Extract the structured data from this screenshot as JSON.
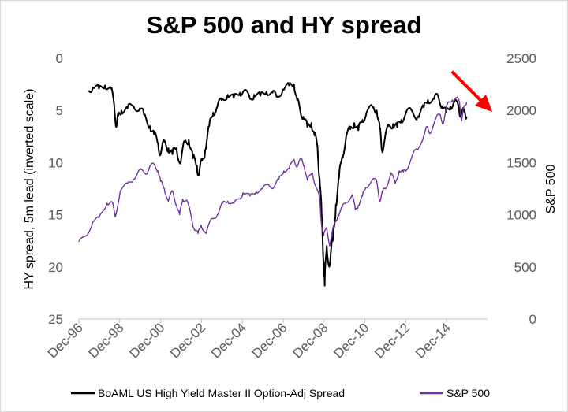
{
  "chart_data": {
    "type": "line",
    "title": "S&P 500 and HY spread",
    "ylabel_left": "HY spread, 5m lead (inverted scale)",
    "ylabel_right": "S&P 500",
    "x_ticks": [
      "Dec-96",
      "Dec-98",
      "Dec-00",
      "Dec-02",
      "Dec-04",
      "Dec-06",
      "Dec-08",
      "Dec-10",
      "Dec-12",
      "Dec-14"
    ],
    "x_range": [
      1996.92,
      2016.92
    ],
    "ylim_left": [
      0,
      25
    ],
    "ylim_left_inverted": true,
    "yticks_left": [
      "0",
      "5",
      "10",
      "15",
      "20",
      "25"
    ],
    "ylim_right": [
      0,
      2500
    ],
    "yticks_right": [
      "0",
      "500",
      "1000",
      "1500",
      "2000",
      "2500"
    ],
    "grid": false,
    "legend_position": "bottom",
    "series": [
      {
        "name": "BoAML US High Yield Master II Option-Adj Spread",
        "axis": "left",
        "color": "#000000",
        "points": [
          [
            1997.4,
            3.1
          ],
          [
            1997.6,
            2.8
          ],
          [
            1997.9,
            2.9
          ],
          [
            1998.2,
            2.6
          ],
          [
            1998.5,
            2.9
          ],
          [
            1998.65,
            4.5
          ],
          [
            1998.75,
            6.6
          ],
          [
            1998.85,
            5.5
          ],
          [
            1999.0,
            5.0
          ],
          [
            1999.3,
            4.8
          ],
          [
            1999.6,
            4.6
          ],
          [
            1999.9,
            4.8
          ],
          [
            2000.1,
            5.4
          ],
          [
            2000.4,
            6.5
          ],
          [
            2000.6,
            7.3
          ],
          [
            2000.8,
            8.2
          ],
          [
            2000.92,
            9.2
          ],
          [
            2001.1,
            8.0
          ],
          [
            2001.3,
            8.6
          ],
          [
            2001.5,
            9.2
          ],
          [
            2001.7,
            8.6
          ],
          [
            2001.9,
            10.1
          ],
          [
            2002.1,
            8.0
          ],
          [
            2002.3,
            7.8
          ],
          [
            2002.5,
            9.6
          ],
          [
            2002.7,
            10.3
          ],
          [
            2002.8,
            11.2
          ],
          [
            2002.95,
            9.8
          ],
          [
            2003.1,
            8.8
          ],
          [
            2003.3,
            6.5
          ],
          [
            2003.5,
            5.2
          ],
          [
            2003.7,
            4.6
          ],
          [
            2003.9,
            4.0
          ],
          [
            2004.2,
            3.5
          ],
          [
            2004.5,
            3.8
          ],
          [
            2004.8,
            3.3
          ],
          [
            2005.0,
            3.1
          ],
          [
            2005.3,
            3.9
          ],
          [
            2005.5,
            3.5
          ],
          [
            2005.8,
            3.6
          ],
          [
            2006.1,
            3.2
          ],
          [
            2006.4,
            3.3
          ],
          [
            2006.6,
            3.7
          ],
          [
            2006.9,
            3.0
          ],
          [
            2007.2,
            2.6
          ],
          [
            2007.45,
            2.5
          ],
          [
            2007.6,
            4.0
          ],
          [
            2007.75,
            5.0
          ],
          [
            2007.9,
            5.6
          ],
          [
            2008.1,
            6.6
          ],
          [
            2008.3,
            6.2
          ],
          [
            2008.45,
            7.4
          ],
          [
            2008.6,
            8.5
          ],
          [
            2008.7,
            11.5
          ],
          [
            2008.8,
            15.0
          ],
          [
            2008.9,
            19.5
          ],
          [
            2008.95,
            21.8
          ],
          [
            2009.05,
            18.0
          ],
          [
            2009.2,
            19.8
          ],
          [
            2009.35,
            17.5
          ],
          [
            2009.5,
            14.0
          ],
          [
            2009.65,
            11.5
          ],
          [
            2009.8,
            9.5
          ],
          [
            2010.0,
            7.5
          ],
          [
            2010.2,
            6.8
          ],
          [
            2010.4,
            6.2
          ],
          [
            2010.6,
            6.9
          ],
          [
            2010.8,
            5.9
          ],
          [
            2011.0,
            5.2
          ],
          [
            2011.3,
            4.7
          ],
          [
            2011.5,
            5.0
          ],
          [
            2011.65,
            6.8
          ],
          [
            2011.75,
            8.8
          ],
          [
            2011.9,
            7.6
          ],
          [
            2012.1,
            6.5
          ],
          [
            2012.3,
            6.3
          ],
          [
            2012.5,
            6.6
          ],
          [
            2012.7,
            5.9
          ],
          [
            2012.92,
            5.3
          ],
          [
            2013.2,
            5.0
          ],
          [
            2013.5,
            5.6
          ],
          [
            2013.8,
            4.7
          ],
          [
            2014.0,
            4.0
          ],
          [
            2014.3,
            3.9
          ],
          [
            2014.5,
            3.6
          ],
          [
            2014.7,
            4.6
          ],
          [
            2014.9,
            5.2
          ],
          [
            2015.1,
            4.6
          ],
          [
            2015.3,
            4.2
          ],
          [
            2015.5,
            4.6
          ],
          [
            2015.6,
            5.4
          ],
          [
            2015.75,
            5.1
          ],
          [
            2015.9,
            5.6
          ]
        ]
      },
      {
        "name": "S&P 500",
        "axis": "right",
        "color": "#7030a0",
        "points": [
          [
            1996.92,
            740
          ],
          [
            1997.3,
            800
          ],
          [
            1997.6,
            930
          ],
          [
            1997.9,
            970
          ],
          [
            1998.3,
            1110
          ],
          [
            1998.55,
            1120
          ],
          [
            1998.7,
            980
          ],
          [
            1998.95,
            1230
          ],
          [
            1999.3,
            1300
          ],
          [
            1999.6,
            1340
          ],
          [
            1999.9,
            1430
          ],
          [
            2000.2,
            1390
          ],
          [
            2000.4,
            1470
          ],
          [
            2000.6,
            1480
          ],
          [
            2000.8,
            1420
          ],
          [
            2000.92,
            1320
          ],
          [
            2001.1,
            1250
          ],
          [
            2001.3,
            1130
          ],
          [
            2001.5,
            1230
          ],
          [
            2001.7,
            1090
          ],
          [
            2001.85,
            1000
          ],
          [
            2002.0,
            1150
          ],
          [
            2002.2,
            1140
          ],
          [
            2002.4,
            1000
          ],
          [
            2002.55,
            870
          ],
          [
            2002.75,
            820
          ],
          [
            2002.9,
            900
          ],
          [
            2003.15,
            820
          ],
          [
            2003.4,
            960
          ],
          [
            2003.7,
            1000
          ],
          [
            2003.95,
            1110
          ],
          [
            2004.2,
            1130
          ],
          [
            2004.5,
            1110
          ],
          [
            2004.8,
            1150
          ],
          [
            2004.95,
            1210
          ],
          [
            2005.3,
            1180
          ],
          [
            2005.6,
            1220
          ],
          [
            2005.9,
            1250
          ],
          [
            2006.2,
            1290
          ],
          [
            2006.45,
            1260
          ],
          [
            2006.7,
            1340
          ],
          [
            2006.95,
            1420
          ],
          [
            2007.2,
            1440
          ],
          [
            2007.45,
            1530
          ],
          [
            2007.6,
            1460
          ],
          [
            2007.8,
            1540
          ],
          [
            2007.95,
            1470
          ],
          [
            2008.1,
            1330
          ],
          [
            2008.35,
            1400
          ],
          [
            2008.5,
            1280
          ],
          [
            2008.7,
            1160
          ],
          [
            2008.8,
            900
          ],
          [
            2008.9,
            800
          ],
          [
            2009.05,
            880
          ],
          [
            2009.2,
            700
          ],
          [
            2009.4,
            900
          ],
          [
            2009.6,
            990
          ],
          [
            2009.8,
            1070
          ],
          [
            2010.0,
            1120
          ],
          [
            2010.3,
            1190
          ],
          [
            2010.45,
            1050
          ],
          [
            2010.6,
            1090
          ],
          [
            2010.8,
            1180
          ],
          [
            2010.95,
            1260
          ],
          [
            2011.3,
            1340
          ],
          [
            2011.5,
            1320
          ],
          [
            2011.65,
            1130
          ],
          [
            2011.8,
            1230
          ],
          [
            2011.95,
            1260
          ],
          [
            2012.2,
            1400
          ],
          [
            2012.4,
            1300
          ],
          [
            2012.6,
            1420
          ],
          [
            2012.8,
            1410
          ],
          [
            2012.95,
            1430
          ],
          [
            2013.3,
            1600
          ],
          [
            2013.5,
            1620
          ],
          [
            2013.8,
            1760
          ],
          [
            2013.95,
            1840
          ],
          [
            2014.1,
            1780
          ],
          [
            2014.4,
            1930
          ],
          [
            2014.6,
            1960
          ],
          [
            2014.75,
            1870
          ],
          [
            2014.95,
            2060
          ],
          [
            2015.2,
            2100
          ],
          [
            2015.4,
            2120
          ],
          [
            2015.55,
            2080
          ],
          [
            2015.65,
            1900
          ],
          [
            2015.75,
            2020
          ],
          [
            2015.9,
            2080
          ]
        ]
      }
    ],
    "legend": [
      {
        "label": "BoAML US High Yield Master II Option-Adj Spread",
        "color": "#000000"
      },
      {
        "label": "S&P 500",
        "color": "#7030a0"
      }
    ],
    "annotations": [
      {
        "type": "arrow",
        "color": "#ff0000",
        "direction": "down-right"
      }
    ]
  }
}
